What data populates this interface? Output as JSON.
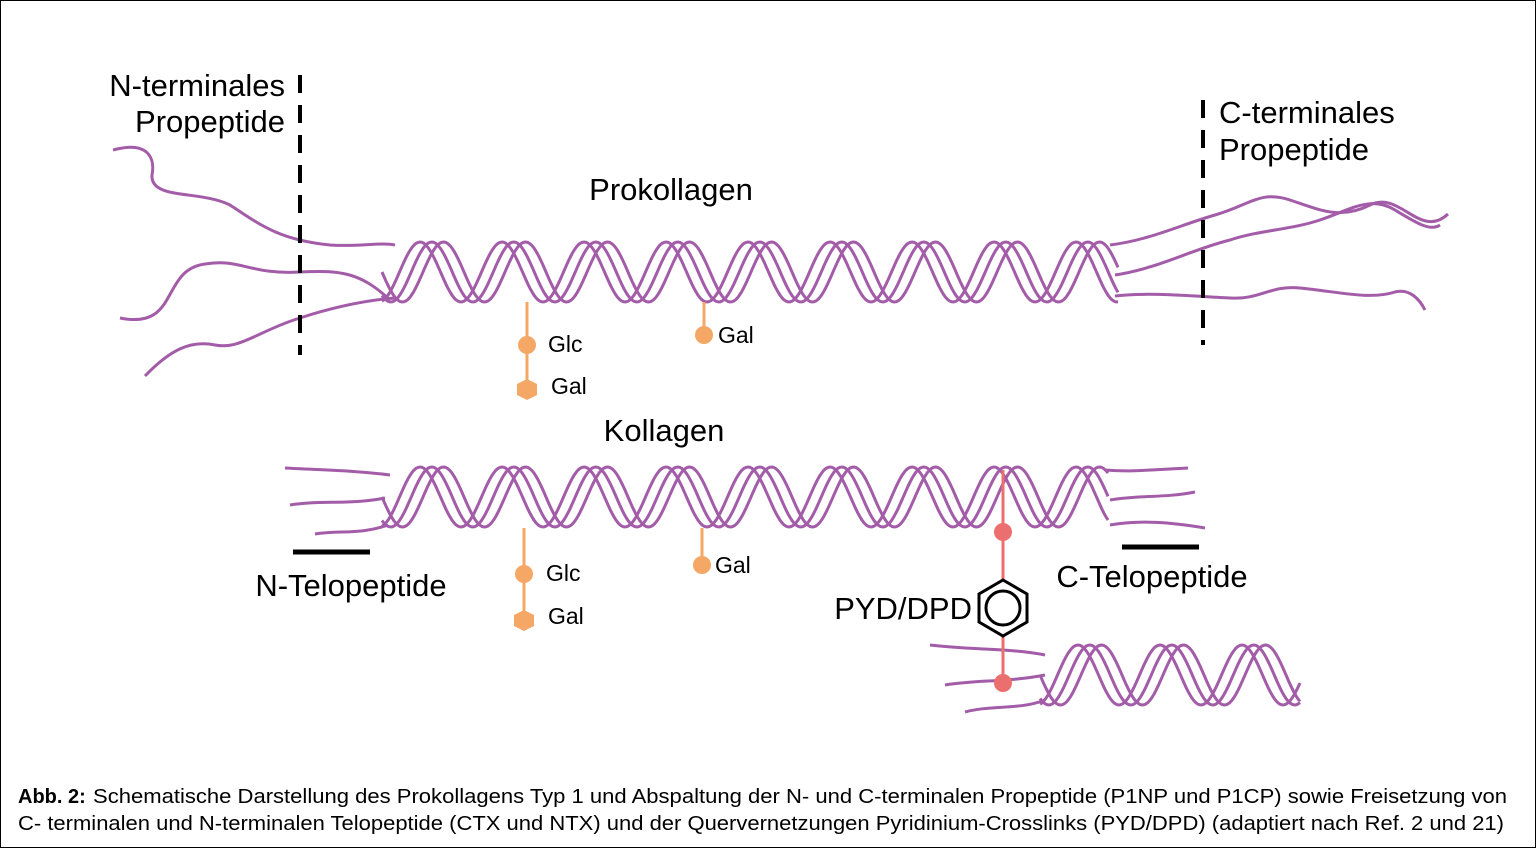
{
  "procollagen": {
    "title": "Prokollagen",
    "n_propeptide": [
      "N-terminales",
      "Propeptide"
    ],
    "c_propeptide": [
      "C-terminales",
      "Propeptide"
    ],
    "sugars": [
      "Glc",
      "Gal",
      "Gal"
    ]
  },
  "collagen": {
    "title": "Kollagen",
    "n_telopeptide": "N-Telopeptide",
    "c_telopeptide": "C-Telopeptide",
    "crosslink": "PYD/DPD",
    "sugars": [
      "Glc",
      "Gal",
      "Gal"
    ]
  },
  "caption": {
    "label": "Abb. 2:",
    "lines": [
      "Schematische Darstellung des Prokollagens Typ 1 und Abspaltung der N- und C-terminalen Propeptide (P1NP und P1CP) sowie Freisetzung von",
      "C- terminalen und N-terminalen Telopeptide (CTX und NTX) und der Quervernetzungen Pyridinium-Crosslinks (PYD/DPD) (adaptiert nach Ref. 2 und 21)"
    ]
  }
}
